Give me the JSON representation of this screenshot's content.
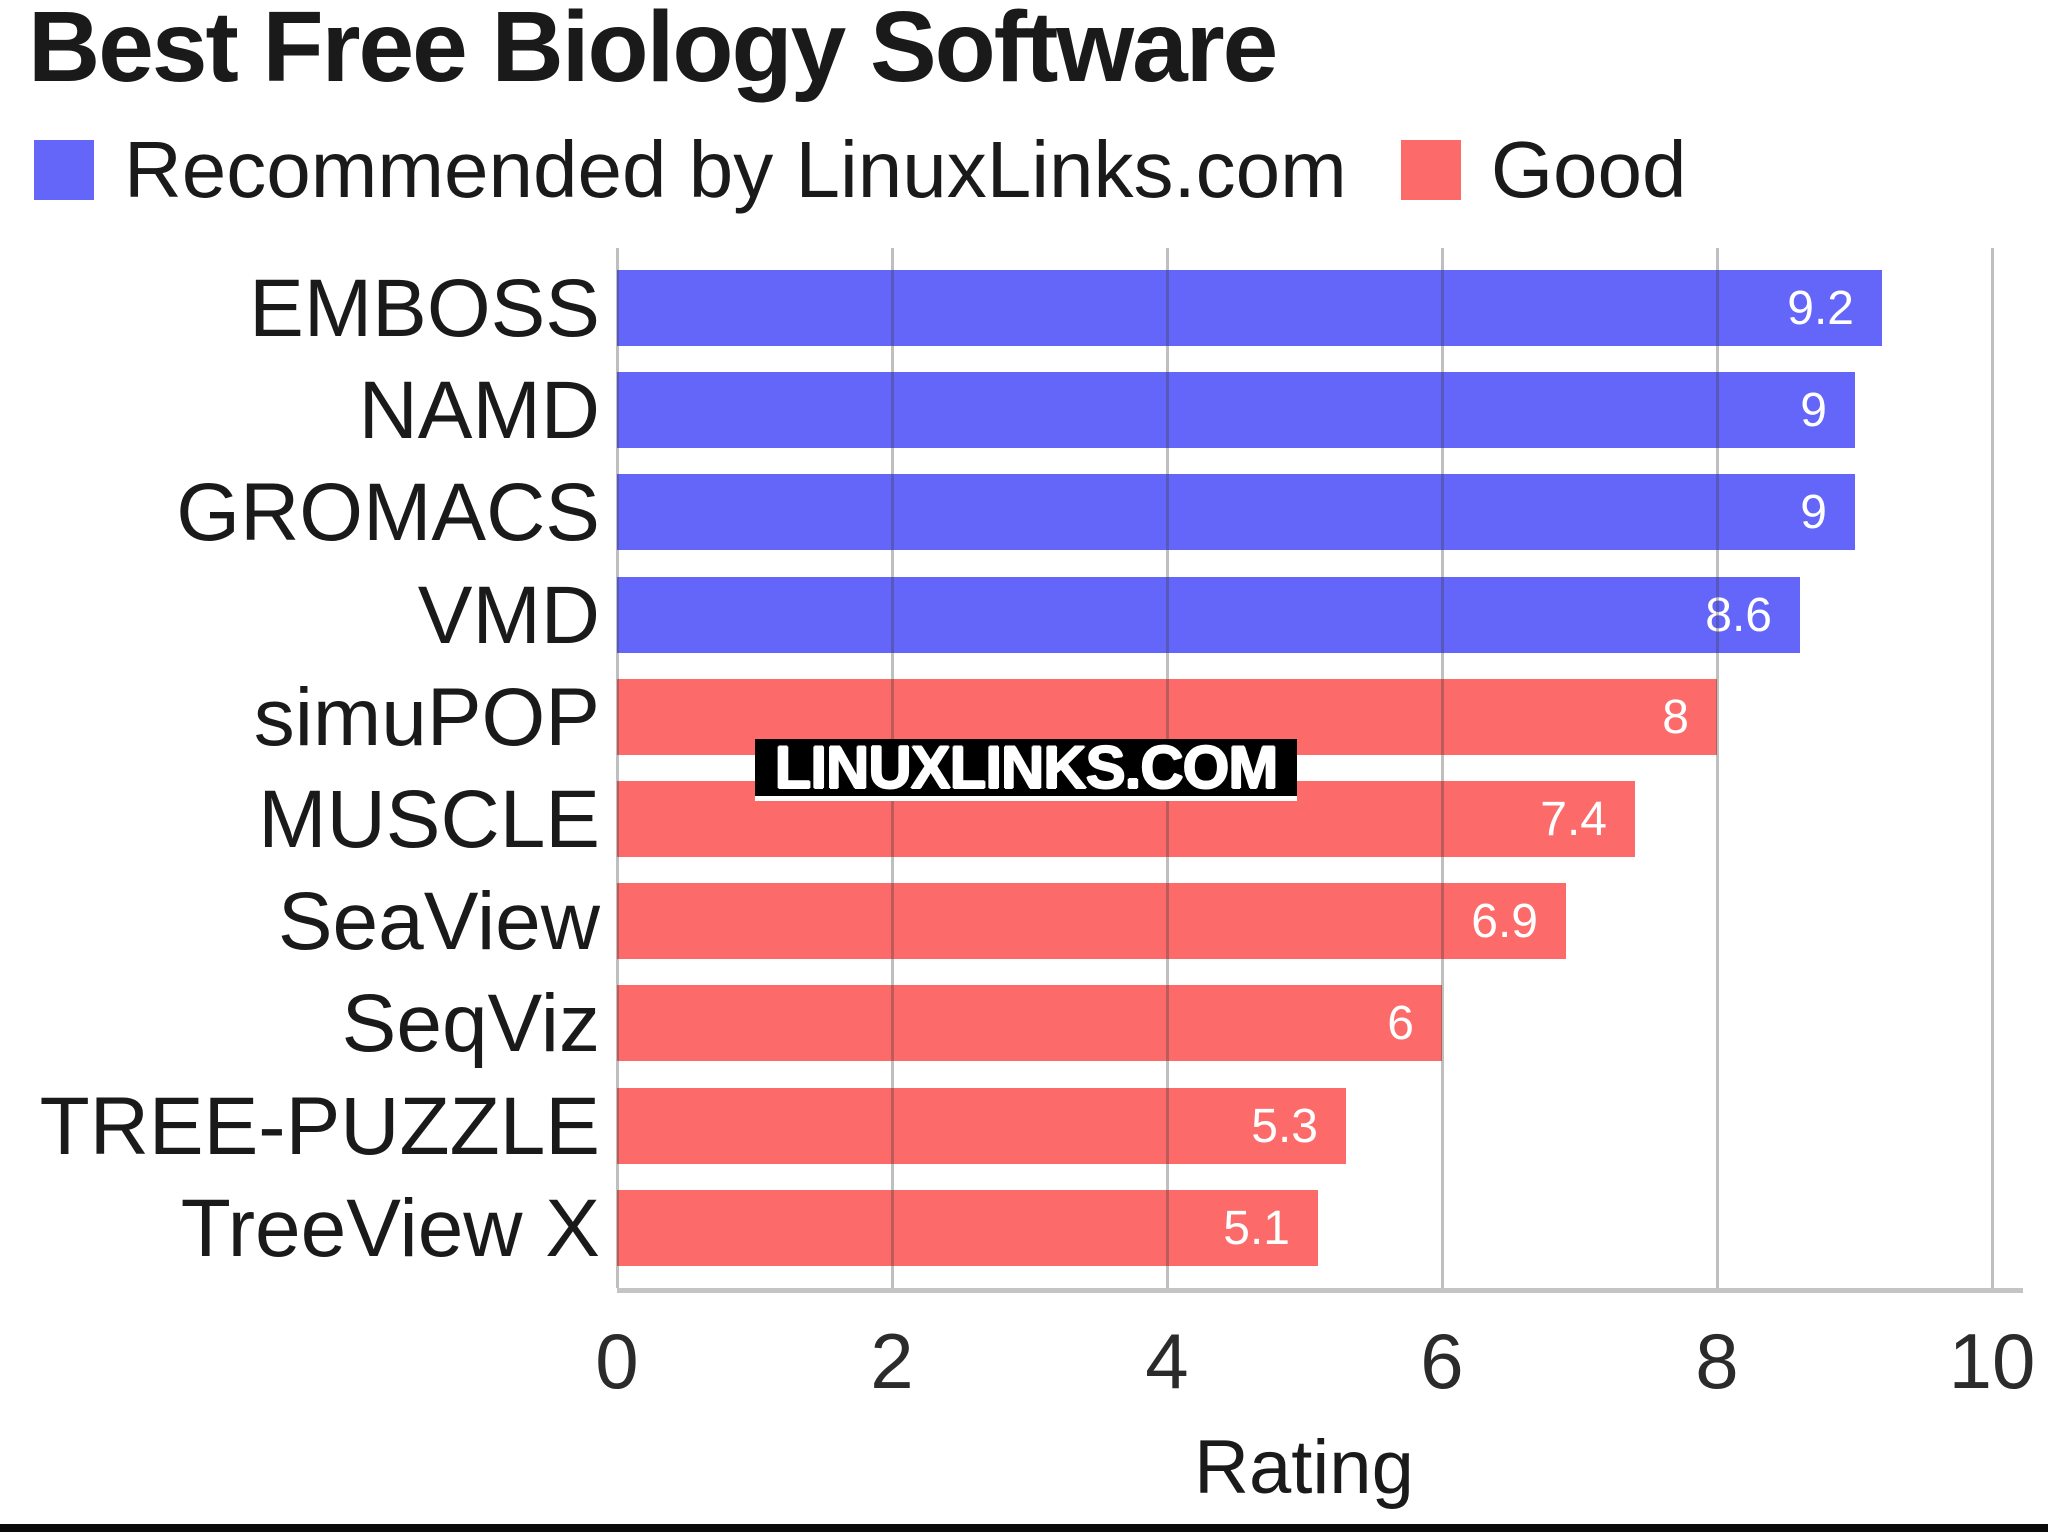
{
  "title": "Best Free Biology Software",
  "watermark_text": "LINUXLINKS.COM",
  "colors": {
    "recommended_blue": "#6466FA",
    "good_red": "#FC6A6A",
    "gridline_gray": "#ABABAB",
    "axis_gray": "#C4C4C4",
    "text_dark": "#1A1A1A",
    "bar_value_white": "#FFFFFF",
    "watermark_bg": "#000000"
  },
  "chart_data": {
    "type": "bar",
    "orientation": "horizontal",
    "title": "Best Free Biology Software",
    "xlabel": "Rating",
    "ylabel": "",
    "xlim": [
      0,
      10
    ],
    "xticks": [
      0,
      2,
      4,
      6,
      8,
      10
    ],
    "grid": true,
    "legend_position": "top",
    "categories": [
      "EMBOSS",
      "NAMD",
      "GROMACS",
      "VMD",
      "simuPOP",
      "MUSCLE",
      "SeaView",
      "SeqViz",
      "TREE-PUZZLE",
      "TreeView X"
    ],
    "values": [
      9.2,
      9,
      9,
      8.6,
      8,
      7.4,
      6.9,
      6,
      5.3,
      5.1
    ],
    "series": [
      {
        "name": "Recommended by LinuxLinks.com",
        "color": "#6466FA",
        "items": [
          {
            "label": "EMBOSS",
            "value": 9.2
          },
          {
            "label": "NAMD",
            "value": 9
          },
          {
            "label": "GROMACS",
            "value": 9
          },
          {
            "label": "VMD",
            "value": 8.6
          }
        ]
      },
      {
        "name": "Good",
        "color": "#FC6A6A",
        "items": [
          {
            "label": "simuPOP",
            "value": 8
          },
          {
            "label": "MUSCLE",
            "value": 7.4
          },
          {
            "label": "SeaView",
            "value": 6.9
          },
          {
            "label": "SeqViz",
            "value": 6
          },
          {
            "label": "TREE-PUZZLE",
            "value": 5.3
          },
          {
            "label": "TreeView X",
            "value": 5.1
          }
        ]
      }
    ]
  }
}
